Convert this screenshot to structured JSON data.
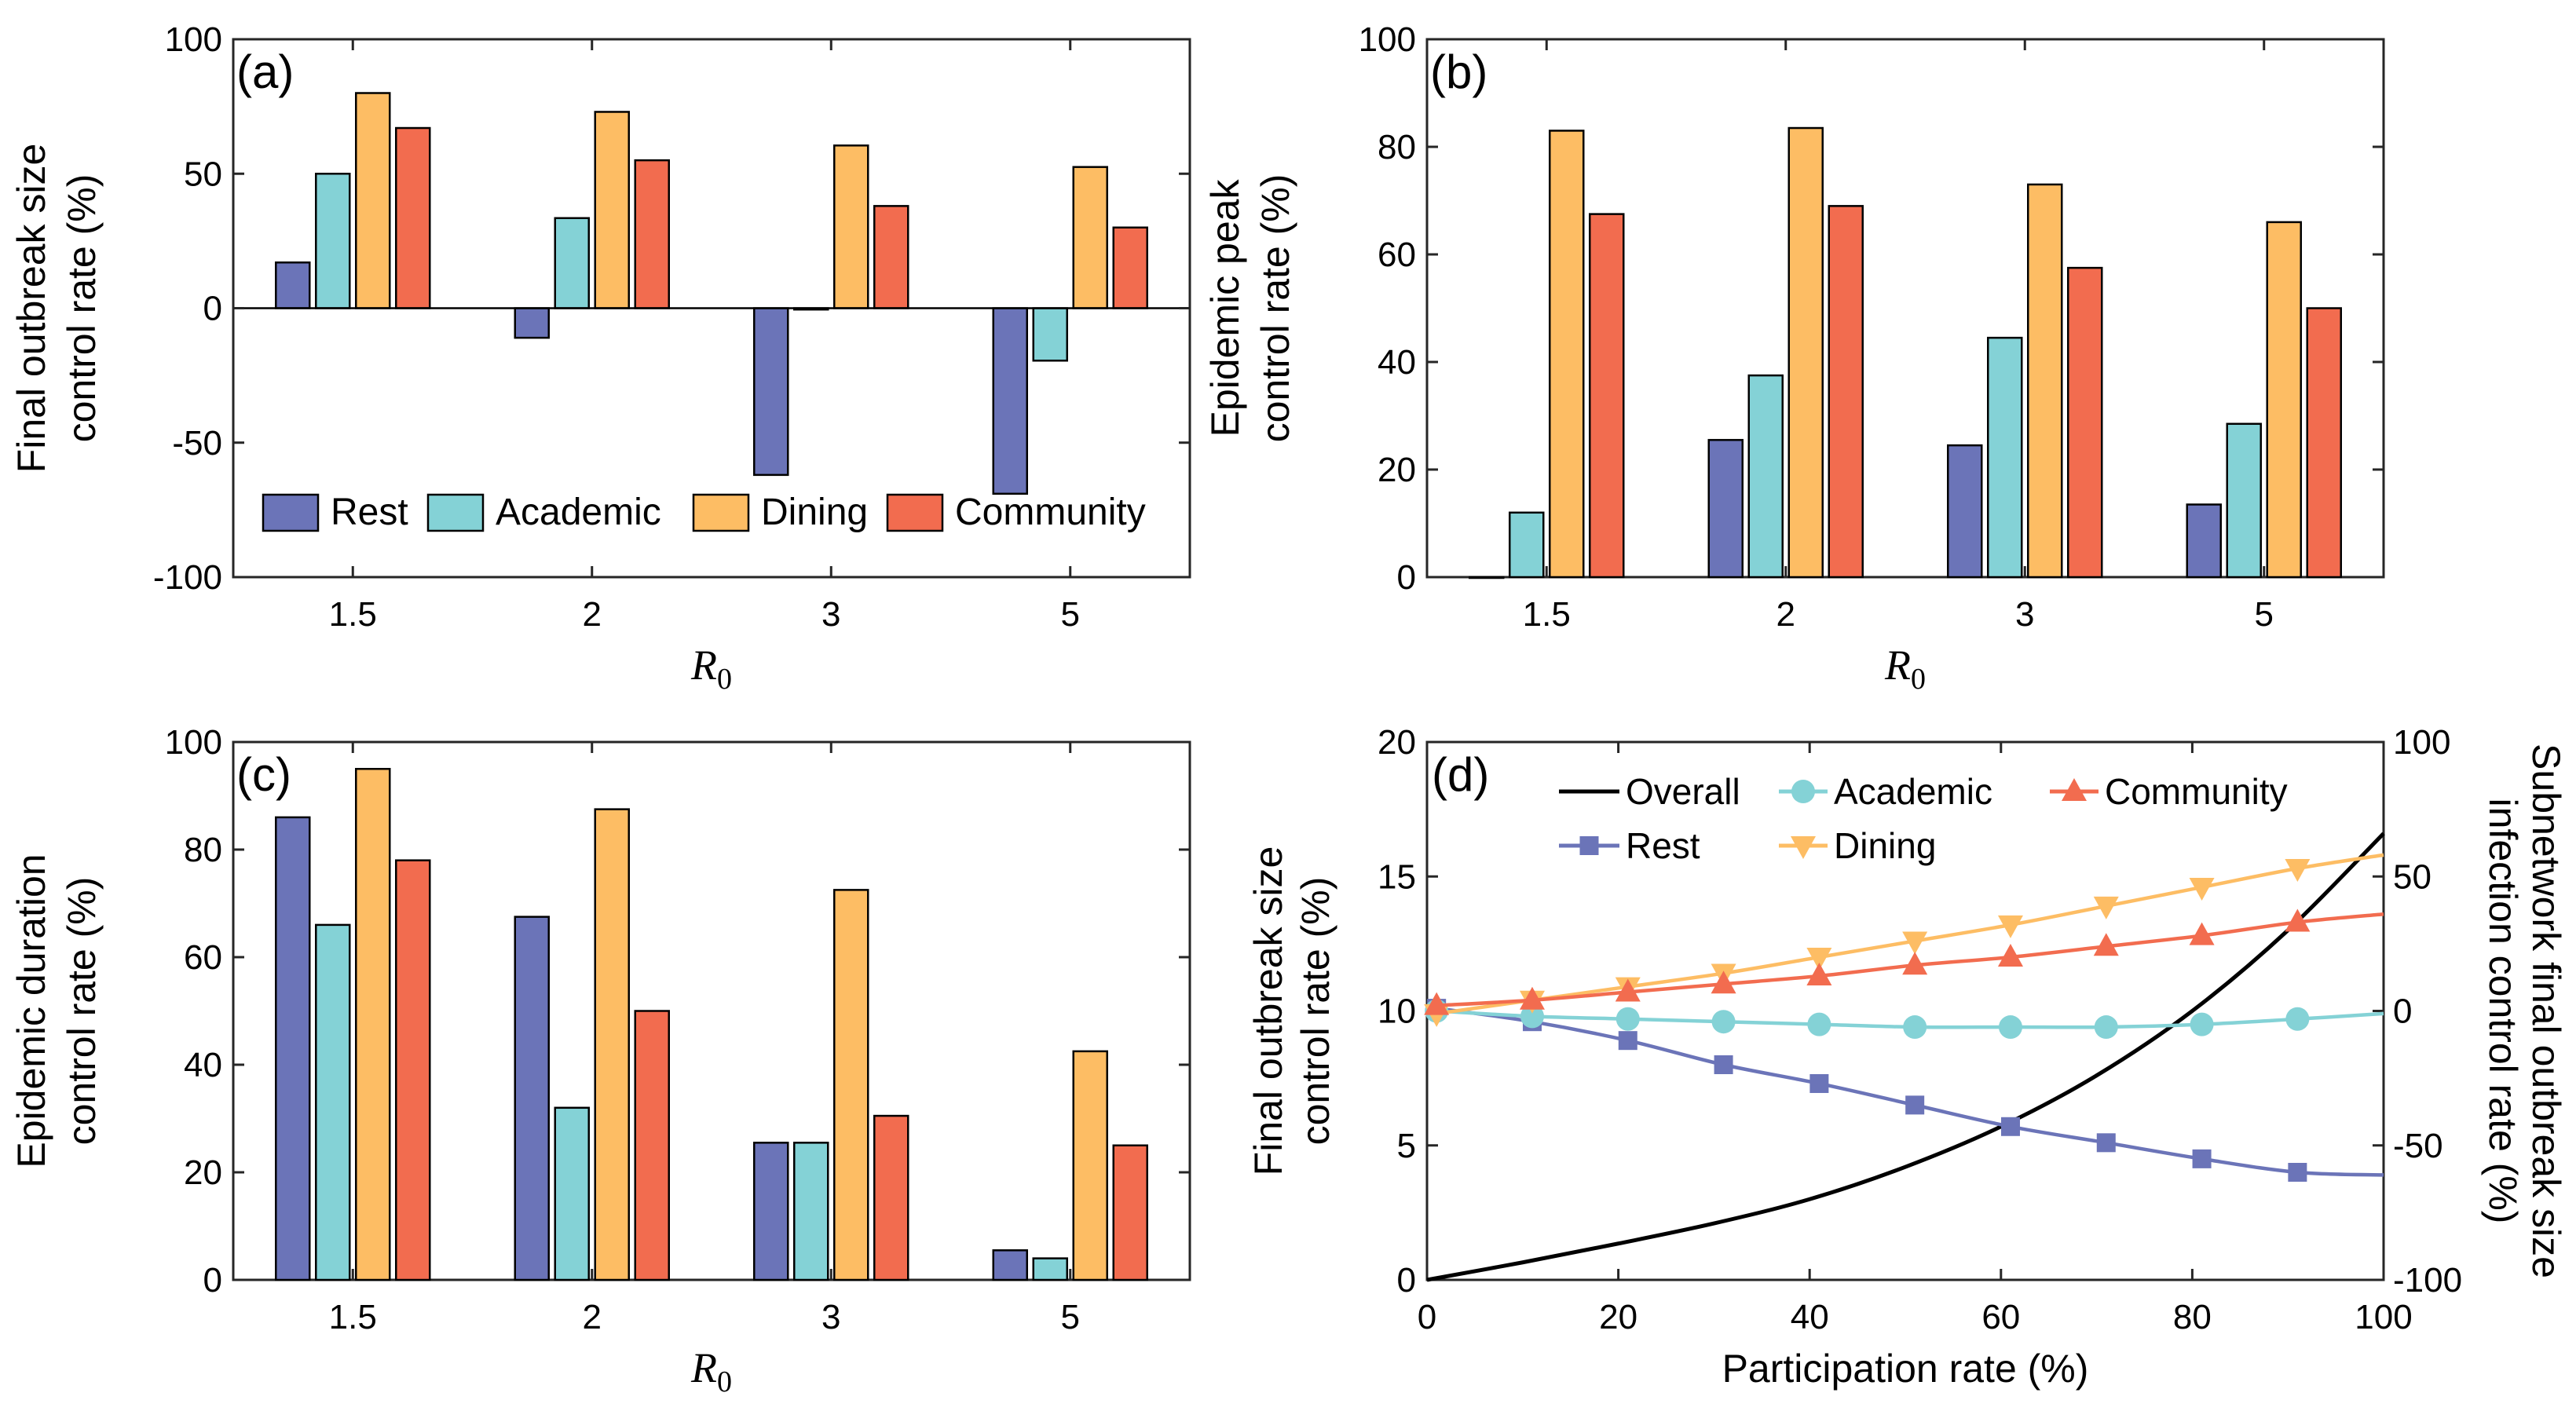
{
  "colors": {
    "rest": "#6b74b8",
    "academic": "#84d2d6",
    "dining": "#fdbd64",
    "community": "#f26c4f",
    "overall": "#000000"
  },
  "chart_data": [
    {
      "id": "a",
      "type": "bar",
      "panel_label": "(a)",
      "categories": [
        "1.5",
        "2",
        "3",
        "5"
      ],
      "ylabel": [
        "Final outbreak size",
        "control rate (%)"
      ],
      "xlabel": "R",
      "xlabel_sub": "0",
      "ylim": [
        -100,
        100
      ],
      "yticks": [
        "-100",
        "-50",
        "0",
        "50",
        "100"
      ],
      "series": [
        {
          "name": "Rest",
          "color_key": "rest",
          "values": [
            17,
            -11,
            -62,
            -69
          ]
        },
        {
          "name": "Academic",
          "color_key": "academic",
          "values": [
            50,
            33.5,
            -0.5,
            -19.5
          ]
        },
        {
          "name": "Dining",
          "color_key": "dining",
          "values": [
            80,
            73,
            60.5,
            52.5
          ]
        },
        {
          "name": "Community",
          "color_key": "community",
          "values": [
            67,
            55,
            38,
            30
          ]
        }
      ],
      "legend": "bottom, horizontal"
    },
    {
      "id": "b",
      "type": "bar",
      "panel_label": "(b)",
      "categories": [
        "1.5",
        "2",
        "3",
        "5"
      ],
      "ylabel": [
        "Epidemic peak",
        "control rate (%)"
      ],
      "xlabel": "R",
      "xlabel_sub": "0",
      "ylim": [
        0,
        100
      ],
      "yticks": [
        "0",
        "20",
        "40",
        "60",
        "80",
        "100"
      ],
      "series": [
        {
          "name": "Rest",
          "color_key": "rest",
          "values": [
            0,
            25.5,
            24.5,
            13.5
          ]
        },
        {
          "name": "Academic",
          "color_key": "academic",
          "values": [
            12,
            37.5,
            44.5,
            28.5
          ]
        },
        {
          "name": "Dining",
          "color_key": "dining",
          "values": [
            83,
            83.5,
            73,
            66
          ]
        },
        {
          "name": "Community",
          "color_key": "community",
          "values": [
            67.5,
            69,
            57.5,
            50
          ]
        }
      ]
    },
    {
      "id": "c",
      "type": "bar",
      "panel_label": "(c)",
      "categories": [
        "1.5",
        "2",
        "3",
        "5"
      ],
      "ylabel": [
        "Epidemic duration",
        "control rate (%)"
      ],
      "xlabel": "R",
      "xlabel_sub": "0",
      "ylim": [
        0,
        100
      ],
      "yticks": [
        "0",
        "20",
        "40",
        "60",
        "80",
        "100"
      ],
      "series": [
        {
          "name": "Rest",
          "color_key": "rest",
          "values": [
            86,
            67.5,
            25.5,
            5.5
          ]
        },
        {
          "name": "Academic",
          "color_key": "academic",
          "values": [
            66,
            32,
            25.5,
            4
          ]
        },
        {
          "name": "Dining",
          "color_key": "dining",
          "values": [
            95,
            87.5,
            72.5,
            42.5
          ]
        },
        {
          "name": "Community",
          "color_key": "community",
          "values": [
            78,
            50,
            30.5,
            25
          ]
        }
      ]
    },
    {
      "id": "d",
      "type": "line",
      "panel_label": "(d)",
      "xlabel": "Participation rate (%)",
      "ylabel": [
        "Final outbreak size",
        "control rate (%)"
      ],
      "ylabel_right": [
        "Subnetwork final outbreak size",
        "infection control rate (%)"
      ],
      "xlim": [
        0,
        100
      ],
      "ylim_left": [
        0,
        20
      ],
      "ylim_right": [
        -100,
        100
      ],
      "xticks": [
        "0",
        "20",
        "40",
        "60",
        "80",
        "100"
      ],
      "yticks_left": [
        "0",
        "5",
        "10",
        "15",
        "20"
      ],
      "yticks_right": [
        "-100",
        "-50",
        "0",
        "50",
        "100"
      ],
      "series": [
        {
          "name": "Overall",
          "axis": "left",
          "marker": "none",
          "color_key": "overall",
          "x": [
            0,
            10,
            20,
            30,
            40,
            50,
            60,
            70,
            80,
            90,
            100
          ],
          "y": [
            0,
            0.65,
            1.35,
            2.1,
            3.0,
            4.2,
            5.7,
            7.6,
            10.0,
            13.0,
            16.6
          ]
        },
        {
          "name": "Rest",
          "axis": "right",
          "marker": "square",
          "color_key": "rest",
          "x": [
            1,
            11,
            21,
            31,
            41,
            51,
            61,
            71,
            81,
            91,
            100
          ],
          "y": [
            1,
            -4,
            -11,
            -20,
            -27,
            -35,
            -43,
            -49,
            -55,
            -60,
            -61
          ]
        },
        {
          "name": "Academic",
          "axis": "right",
          "marker": "circle",
          "color_key": "academic",
          "x": [
            1,
            11,
            21,
            31,
            41,
            51,
            61,
            71,
            81,
            91,
            100
          ],
          "y": [
            0,
            -2,
            -3,
            -4,
            -5,
            -6,
            -6,
            -6,
            -5,
            -3,
            -1
          ]
        },
        {
          "name": "Dining",
          "axis": "right",
          "marker": "triangle-down",
          "color_key": "dining",
          "x": [
            1,
            11,
            21,
            31,
            41,
            51,
            61,
            71,
            81,
            91,
            100
          ],
          "y": [
            -1,
            4,
            9,
            14,
            20,
            26,
            32,
            39,
            46,
            53,
            58
          ]
        },
        {
          "name": "Community",
          "axis": "right",
          "marker": "triangle-up",
          "color_key": "community",
          "x": [
            1,
            11,
            21,
            31,
            41,
            51,
            61,
            71,
            81,
            91,
            100
          ],
          "y": [
            2,
            4,
            7,
            10,
            13,
            17,
            20,
            24,
            28,
            33,
            36
          ]
        }
      ]
    }
  ]
}
